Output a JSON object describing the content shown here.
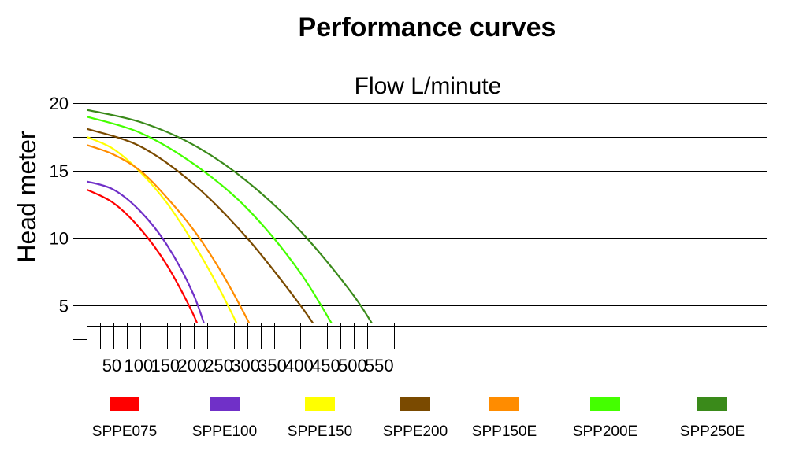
{
  "chart_data": {
    "type": "line",
    "title": "Performance curves",
    "subtitle": "Flow L/minute",
    "xlabel": "",
    "ylabel": "Head meter",
    "xlim": [
      0,
      575
    ],
    "ylim": [
      3.5,
      23
    ],
    "x_ticks": [
      50,
      100,
      150,
      200,
      250,
      300,
      350,
      400,
      450,
      500,
      550
    ],
    "x_tick_marks": [
      0,
      25,
      50,
      75,
      100,
      125,
      150,
      175,
      200,
      225,
      250,
      275,
      300,
      325,
      350,
      375,
      400,
      425,
      450,
      475,
      500,
      525,
      550,
      575
    ],
    "y_ticks": [
      5,
      10,
      15,
      20
    ],
    "y_gridlines": [
      3.5,
      5,
      7.5,
      10,
      12.5,
      15,
      17.5,
      20
    ],
    "legend_position": "bottom",
    "series": [
      {
        "name": "SPPE075",
        "color": "#ff0000",
        "x": [
          0,
          50,
          100,
          150,
          200,
          220
        ],
        "y": [
          13.6,
          12.6,
          10.7,
          8.0,
          4.3,
          2.1
        ]
      },
      {
        "name": "SPPE100",
        "color": "#7030c8",
        "x": [
          0,
          50,
          100,
          150,
          200,
          232
        ],
        "y": [
          14.2,
          13.6,
          12.0,
          9.5,
          5.8,
          2.1
        ]
      },
      {
        "name": "SPPE150",
        "color": "#ffff00",
        "x": [
          0,
          50,
          100,
          150,
          200,
          250,
          300
        ],
        "y": [
          17.5,
          16.6,
          14.9,
          12.6,
          9.6,
          6.1,
          2.1
        ]
      },
      {
        "name": "SPPE200",
        "color": "#7a4a00",
        "x": [
          0,
          100,
          200,
          300,
          400,
          449
        ],
        "y": [
          18.1,
          16.8,
          14.0,
          10.0,
          5.0,
          2.1
        ]
      },
      {
        "name": "SPP150E",
        "color": "#ff8c00",
        "x": [
          0,
          50,
          100,
          150,
          200,
          250,
          300,
          322
        ],
        "y": [
          16.9,
          16.2,
          15.0,
          13.0,
          10.6,
          7.6,
          4.0,
          2.1
        ]
      },
      {
        "name": "SPP200E",
        "color": "#44ff00",
        "x": [
          0,
          100,
          200,
          300,
          400,
          481
        ],
        "y": [
          19.0,
          17.8,
          15.5,
          12.2,
          7.4,
          2.1
        ]
      },
      {
        "name": "SPP250E",
        "color": "#3a8a1a",
        "x": [
          0,
          100,
          200,
          300,
          400,
          500,
          557
        ],
        "y": [
          19.5,
          18.6,
          16.9,
          14.2,
          10.5,
          5.7,
          2.1
        ]
      }
    ]
  }
}
